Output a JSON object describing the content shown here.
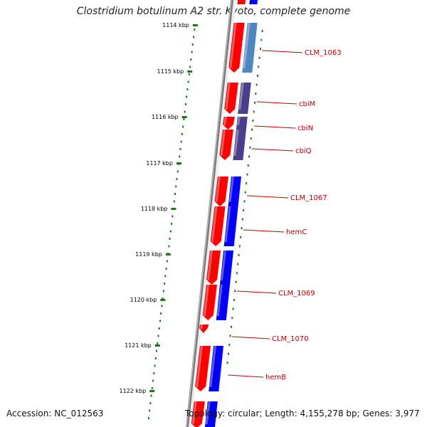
{
  "title": "Clostridium botulinum A2 str. Kyoto, complete genome",
  "footer": {
    "accession": "Accession: NC_012563",
    "topology": "Topology: circular; Length: 4,155,278 bp; Genes: 3,977"
  },
  "ticks": [
    "1114 kbp",
    "1115 kbp",
    "1116 kbp",
    "1117 kbp",
    "1118 kbp",
    "1119 kbp",
    "1120 kbp",
    "1121 kbp",
    "1122 kbp"
  ],
  "genes": [
    "CLM_1063",
    "cbiM",
    "cbiN",
    "cbiQ",
    "CLM_1067",
    "hemC",
    "CLM_1069",
    "CLM_1070",
    "hemB"
  ],
  "colors": {
    "forward": "#ff0000",
    "reverse": "#0000ff",
    "cog_steel": "#4f86bf",
    "cog_purple": "#4b3f8c",
    "tick": "#1a7a1a",
    "label": "#c00000"
  }
}
